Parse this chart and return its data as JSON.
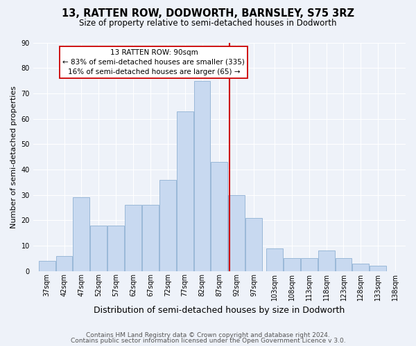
{
  "title": "13, RATTEN ROW, DODWORTH, BARNSLEY, S75 3RZ",
  "subtitle": "Size of property relative to semi-detached houses in Dodworth",
  "xlabel": "Distribution of semi-detached houses by size in Dodworth",
  "ylabel": "Number of semi-detached properties",
  "footer_line1": "Contains HM Land Registry data © Crown copyright and database right 2024.",
  "footer_line2": "Contains public sector information licensed under the Open Government Licence v 3.0.",
  "bar_centers": [
    37,
    42,
    47,
    52,
    57,
    62,
    67,
    72,
    77,
    82,
    87,
    92,
    97,
    103,
    108,
    113,
    118,
    123,
    128,
    133,
    138
  ],
  "bar_heights": [
    4,
    6,
    29,
    18,
    18,
    26,
    26,
    36,
    63,
    75,
    43,
    30,
    21,
    9,
    5,
    5,
    8,
    5,
    3,
    2,
    0
  ],
  "bar_width": 4.8,
  "bar_color": "#c8d9f0",
  "bar_edge_color": "#9ab8d8",
  "x_tick_labels": [
    "37sqm",
    "42sqm",
    "47sqm",
    "52sqm",
    "57sqm",
    "62sqm",
    "67sqm",
    "72sqm",
    "77sqm",
    "82sqm",
    "87sqm",
    "92sqm",
    "97sqm",
    "103sqm",
    "108sqm",
    "113sqm",
    "118sqm",
    "123sqm",
    "128sqm",
    "133sqm",
    "138sqm"
  ],
  "x_tick_positions": [
    37,
    42,
    47,
    52,
    57,
    62,
    67,
    72,
    77,
    82,
    87,
    92,
    97,
    103,
    108,
    113,
    118,
    123,
    128,
    133,
    138
  ],
  "ylim": [
    0,
    90
  ],
  "yticks": [
    0,
    10,
    20,
    30,
    40,
    50,
    60,
    70,
    80,
    90
  ],
  "xlim": [
    33,
    141
  ],
  "vline_x": 90,
  "vline_color": "#cc0000",
  "annotation_title": "13 RATTEN ROW: 90sqm",
  "annotation_line1": "← 83% of semi-detached houses are smaller (335)",
  "annotation_line2": "16% of semi-detached houses are larger (65) →",
  "background_color": "#eef2f9",
  "grid_color": "#ffffff",
  "title_fontsize": 10.5,
  "subtitle_fontsize": 8.5,
  "ylabel_fontsize": 8,
  "xlabel_fontsize": 9,
  "tick_fontsize": 7,
  "footer_fontsize": 6.5
}
